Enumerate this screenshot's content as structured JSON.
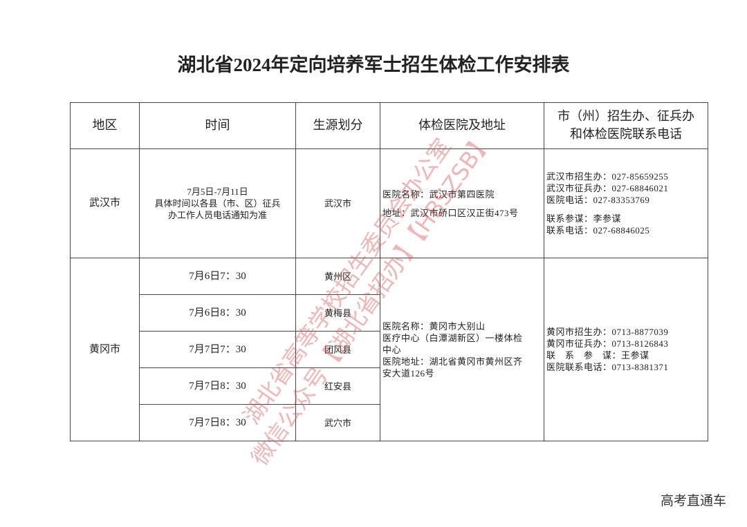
{
  "title": "湖北省2024年定向培养军士招生体检工作安排表",
  "table": {
    "header": [
      [
        "地区"
      ],
      [
        "时间"
      ],
      [
        "生源划分"
      ],
      [
        "体检医院及地址"
      ],
      [
        "市（州）招生办、征兵办",
        "和体检医院联系电话"
      ]
    ],
    "rows": [
      {
        "region": "武汉市",
        "time": [
          "7月5日-7月11日",
          "具体时间以各县（市、区）征兵",
          "办工作人员电话通知为准"
        ],
        "source": "武汉市",
        "hospital": [
          [
            "医院名称：武汉市第四医院"
          ],
          [
            "地址：武汉市硚口区汉正街473号"
          ]
        ],
        "contacts": [
          [
            "武汉市招生办：027-85659255",
            "武汉市征兵办：027-68846021",
            "医院电话：027-83353769"
          ],
          [
            "联系参谋：李参谋",
            "联系电话：027-68846025"
          ]
        ]
      },
      {
        "region": "黄冈市",
        "slots": [
          {
            "time": "7月6日7：30",
            "source": "黄州区"
          },
          {
            "time": "7月6日8：30",
            "source": "黄梅县"
          },
          {
            "time": "7月7日7：30",
            "source": "团风县"
          },
          {
            "time": "7月7日8：30",
            "source": "红安县"
          },
          {
            "time": "7月7日8：30",
            "source": "武穴市"
          }
        ],
        "hospital": [
          [
            "医院名称：黄冈市大别山",
            "医疗中心（白潭湖新区）一楼体检",
            "中心"
          ],
          [
            "医院地址：湖北省黄冈市黄州区齐",
            "安大道126号"
          ]
        ],
        "contacts": [
          [
            "黄冈市招生办：0713-8877039",
            "黄冈市征兵办：0713-8126843",
            "联　系　参　谋：王参谋",
            "医院联系电话：0713-8381371"
          ]
        ]
      }
    ]
  },
  "watermark": [
    "湖北省高等学校招生委员会办公室",
    "微信公众号【湖北省招办】【HBSZSB】"
  ],
  "footer": "高考直通车"
}
